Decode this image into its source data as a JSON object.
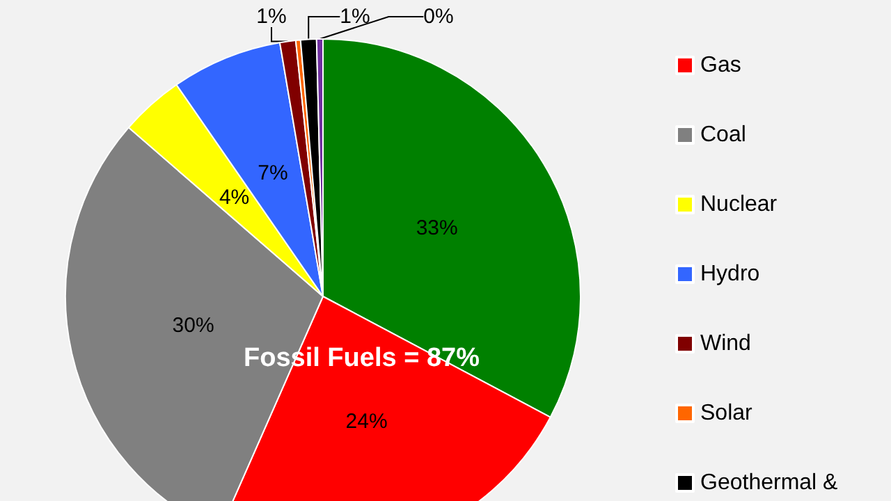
{
  "chart_data": {
    "type": "pie",
    "categories": [
      null,
      "Gas",
      "Coal",
      "Nuclear",
      "Hydro",
      "Wind",
      "Solar",
      "Geothermal &",
      null
    ],
    "values": [
      33,
      24,
      30,
      4,
      7,
      1,
      0.3,
      1,
      0.4
    ],
    "value_labels": [
      "33%",
      "24%",
      "30%",
      "4%",
      "7%",
      "1%",
      null,
      "1%",
      "0%"
    ],
    "colors": [
      "#008000",
      "#ff0000",
      "#808080",
      "#ffff00",
      "#3366ff",
      "#800000",
      "#ff6600",
      "#000000",
      "#7030a0"
    ],
    "annotations": [
      "Fossil Fuels = 87%"
    ],
    "legend": "right"
  }
}
